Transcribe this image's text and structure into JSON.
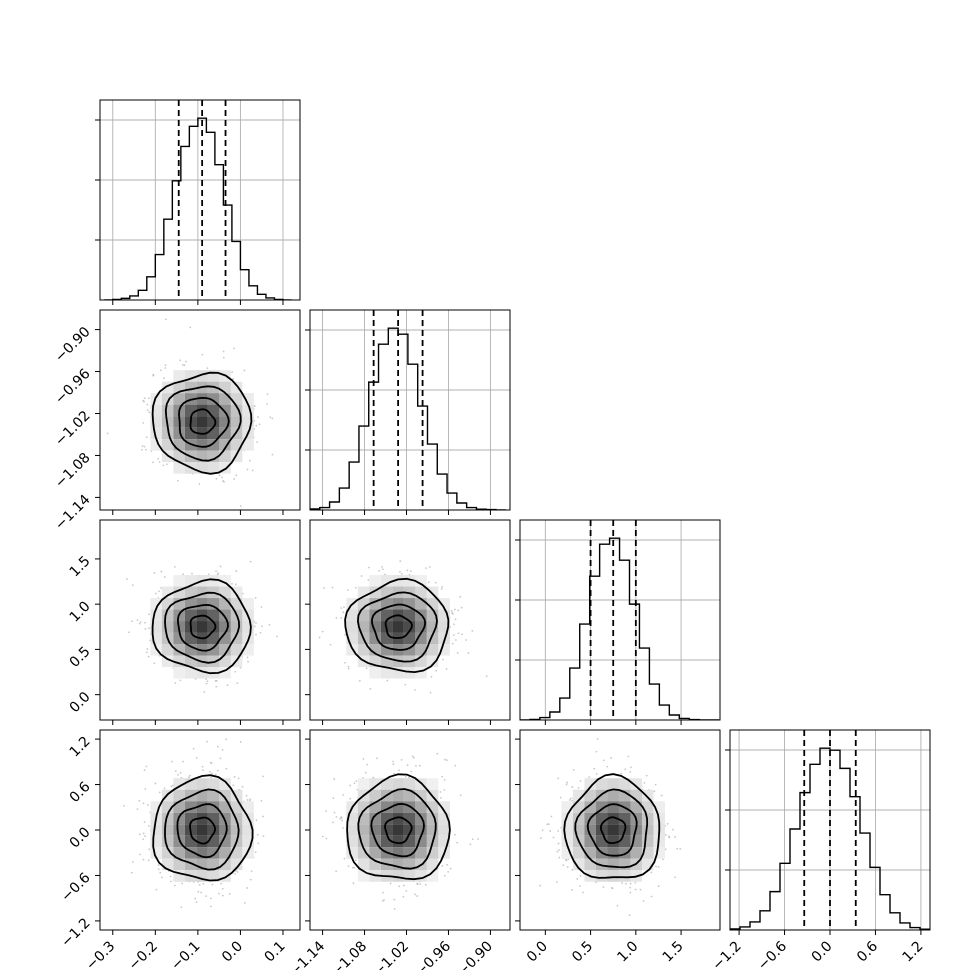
{
  "chart_data": {
    "type": "corner",
    "parameters": [
      {
        "name": "",
        "range": [
          -0.33,
          0.14
        ],
        "ticks": [
          -0.3,
          -0.2,
          -0.1,
          0.0,
          0.1
        ],
        "tick_labels": [
          "−0.3",
          "−0.2",
          "−0.1",
          "0.0",
          "0.1"
        ],
        "quantiles": [
          -0.145,
          -0.09,
          -0.035
        ],
        "mean": -0.09,
        "sd": 0.055,
        "hist_bins": [
          -0.32,
          -0.3,
          -0.28,
          -0.26,
          -0.24,
          -0.22,
          -0.2,
          -0.18,
          -0.16,
          -0.14,
          -0.12,
          -0.1,
          -0.08,
          -0.06,
          -0.04,
          -0.02,
          0.0,
          0.02,
          0.04,
          0.06,
          0.08,
          0.1,
          0.12
        ],
        "hist_counts": [
          0,
          3,
          8,
          20,
          48,
          115,
          225,
          400,
          590,
          760,
          860,
          900,
          830,
          670,
          470,
          290,
          150,
          70,
          28,
          10,
          3,
          0
        ]
      },
      {
        "name": "",
        "range": [
          -1.158,
          -0.872
        ],
        "ticks": [
          -1.14,
          -1.08,
          -1.02,
          -0.96,
          -0.9
        ],
        "tick_labels": [
          "−1.14",
          "−1.08",
          "−1.02",
          "−0.96",
          "−0.90"
        ],
        "quantiles": [
          -1.067,
          -1.032,
          -0.997
        ],
        "mean": -1.032,
        "sd": 0.035,
        "hist_bins": [
          -1.158,
          -1.144,
          -1.13,
          -1.116,
          -1.102,
          -1.088,
          -1.074,
          -1.06,
          -1.046,
          -1.032,
          -1.018,
          -1.004,
          -0.99,
          -0.976,
          -0.962,
          -0.948,
          -0.934,
          -0.92,
          -0.906,
          -0.892,
          -0.878
        ],
        "hist_counts": [
          5,
          12,
          40,
          110,
          240,
          420,
          640,
          830,
          910,
          880,
          730,
          520,
          330,
          180,
          85,
          35,
          12,
          4,
          2,
          0
        ]
      },
      {
        "name": "",
        "range": [
          -0.28,
          1.93
        ],
        "ticks": [
          0.0,
          0.5,
          1.0,
          1.5
        ],
        "tick_labels": [
          "0.0",
          "0.5",
          "1.0",
          "1.5"
        ],
        "quantiles": [
          0.5,
          0.75,
          1.0
        ],
        "mean": 0.75,
        "sd": 0.25,
        "hist_bins": [
          -0.28,
          -0.17,
          -0.06,
          0.05,
          0.16,
          0.27,
          0.38,
          0.49,
          0.6,
          0.71,
          0.82,
          0.93,
          1.04,
          1.15,
          1.26,
          1.37,
          1.48,
          1.59,
          1.7,
          1.81,
          1.92
        ],
        "hist_counts": [
          0,
          3,
          12,
          40,
          110,
          260,
          480,
          720,
          880,
          910,
          800,
          580,
          360,
          180,
          75,
          25,
          8,
          2,
          0,
          0
        ]
      },
      {
        "name": "",
        "range": [
          -1.32,
          1.32
        ],
        "ticks": [
          -1.2,
          -0.6,
          0.0,
          0.6,
          1.2
        ],
        "tick_labels": [
          "−1.2",
          "−0.6",
          "0.0",
          "0.6",
          "1.2"
        ],
        "quantiles": [
          -0.34,
          0.0,
          0.34
        ],
        "mean": 0.0,
        "sd": 0.34,
        "hist_bins": [
          -1.32,
          -1.188,
          -1.056,
          -0.924,
          -0.792,
          -0.66,
          -0.528,
          -0.396,
          -0.264,
          -0.132,
          0.0,
          0.132,
          0.264,
          0.396,
          0.528,
          0.66,
          0.792,
          0.924,
          1.056,
          1.188,
          1.32
        ],
        "hist_counts": [
          5,
          15,
          40,
          95,
          190,
          330,
          500,
          680,
          820,
          900,
          890,
          800,
          660,
          480,
          310,
          175,
          85,
          35,
          12,
          4
        ]
      }
    ],
    "contour_levels_sigma": [
      0.5,
      1.0,
      1.5,
      2.0
    ],
    "colors": {
      "lines": "#000000",
      "grid": "#b0b0b0",
      "points": "#9a9a9a"
    }
  }
}
